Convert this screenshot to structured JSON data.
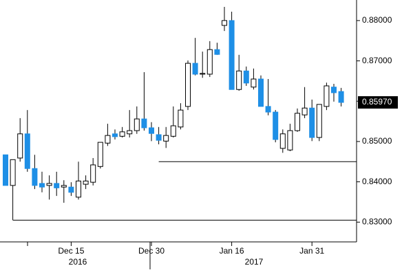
{
  "chart_data": {
    "type": "candlestick",
    "categories": [
      null,
      null,
      null,
      null,
      null,
      null,
      null,
      null,
      null,
      "Dec 15",
      null,
      null,
      null,
      null,
      null,
      null,
      null,
      null,
      null,
      null,
      "Dec 30",
      null,
      null,
      null,
      null,
      null,
      null,
      null,
      null,
      null,
      null,
      "Jan 16",
      null,
      null,
      null,
      null,
      null,
      null,
      null,
      null,
      null,
      null,
      "Jan 31",
      null,
      null,
      null,
      null
    ],
    "years": [
      "2016",
      "2017"
    ],
    "open": [
      0.8467,
      0.8391,
      0.8459,
      0.8519,
      0.8433,
      0.8396,
      0.8391,
      0.8396,
      0.8387,
      0.8387,
      0.8362,
      0.8394,
      0.8399,
      0.8438,
      0.8496,
      0.8519,
      0.8513,
      0.8519,
      0.8527,
      0.8556,
      0.8534,
      0.8517,
      0.8501,
      0.8513,
      0.8536,
      0.8587,
      0.8694,
      0.8667,
      0.8667,
      0.8728,
      0.8788,
      0.88,
      0.8629,
      0.8675,
      0.8635,
      0.8655,
      0.8587,
      0.8573,
      0.8483,
      0.8479,
      0.8527,
      0.8566,
      0.8583,
      0.851,
      0.8587,
      0.8635,
      0.8624
    ],
    "high": [
      0.8467,
      0.8455,
      0.8558,
      0.8578,
      0.8467,
      0.8425,
      0.8416,
      0.8425,
      0.8404,
      0.8399,
      0.845,
      0.8416,
      0.8459,
      0.8498,
      0.8544,
      0.853,
      0.8536,
      0.8578,
      0.8587,
      0.8672,
      0.8548,
      0.8536,
      0.8536,
      0.8587,
      0.8595,
      0.8701,
      0.8757,
      0.8723,
      0.8749,
      0.8745,
      0.8834,
      0.8822,
      0.8715,
      0.8686,
      0.8681,
      0.8664,
      0.8655,
      0.8578,
      0.853,
      0.8544,
      0.8582,
      0.8635,
      0.8604,
      0.8592,
      0.8646,
      0.8643,
      0.8633
    ],
    "low": [
      0.8391,
      0.8305,
      0.845,
      0.8425,
      0.8382,
      0.8374,
      0.8356,
      0.8365,
      0.8348,
      0.8365,
      0.8356,
      0.8382,
      0.8391,
      0.8433,
      0.8489,
      0.8505,
      0.851,
      0.851,
      0.8519,
      0.8527,
      0.8501,
      0.8493,
      0.8484,
      0.851,
      0.853,
      0.8578,
      0.8664,
      0.8658,
      0.866,
      0.8715,
      0.8774,
      0.8629,
      0.8626,
      0.8638,
      0.8629,
      0.8587,
      0.8565,
      0.8498,
      0.8472,
      0.8476,
      0.8524,
      0.8558,
      0.8501,
      0.8501,
      0.8578,
      0.8599,
      0.8587
    ],
    "close": [
      0.8391,
      0.8455,
      0.8519,
      0.8433,
      0.8391,
      0.8387,
      0.8396,
      0.8385,
      0.8391,
      0.8374,
      0.8402,
      0.8402,
      0.8442,
      0.8498,
      0.8515,
      0.8512,
      0.8524,
      0.8527,
      0.8556,
      0.8534,
      0.852,
      0.8503,
      0.8515,
      0.8539,
      0.8578,
      0.8694,
      0.8667,
      0.8669,
      0.8728,
      0.8716,
      0.88,
      0.8629,
      0.8675,
      0.8645,
      0.8655,
      0.8587,
      0.8573,
      0.8505,
      0.8519,
      0.8527,
      0.857,
      0.8583,
      0.851,
      0.8592,
      0.8638,
      0.8621,
      0.8597
    ],
    "up_color": "#ffffff",
    "down_color": "#1e8fe6",
    "reference_lines": [
      {
        "value": 0.8305,
        "start": 1
      },
      {
        "value": 0.845,
        "start": 21
      }
    ],
    "last_price": {
      "value": 0.8597,
      "label": "0.85970"
    },
    "ylim": [
      0.8251,
      0.8851
    ],
    "yticks": [
      {
        "value": 0.83,
        "label": "0.83000"
      },
      {
        "value": 0.84,
        "label": "0.84000"
      },
      {
        "value": 0.85,
        "label": "0.85000"
      },
      {
        "value": 0.86,
        "label": "0.86000"
      },
      {
        "value": 0.87,
        "label": "0.87000"
      },
      {
        "value": 0.88,
        "label": "0.88000"
      }
    ]
  }
}
